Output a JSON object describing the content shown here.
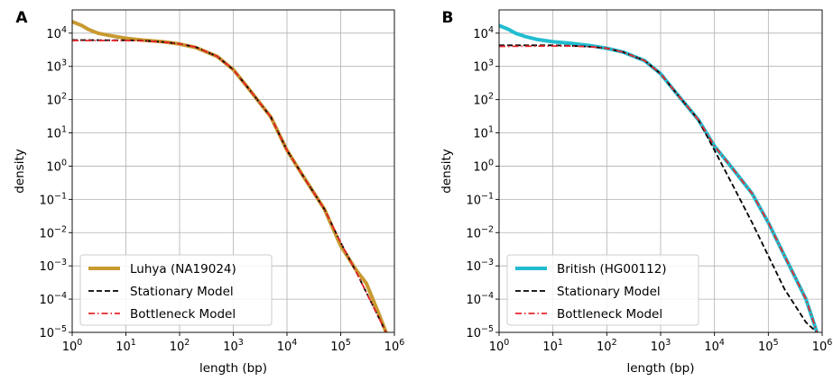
{
  "chart_data": [
    {
      "type": "line",
      "panel_label": "A",
      "xlabel": "length (bp)",
      "ylabel": "density",
      "xscale": "log",
      "yscale": "log",
      "xlim": [
        1,
        1000000
      ],
      "ylim": [
        1e-05,
        50000
      ],
      "grid": true,
      "legend_position": "lower-left",
      "x_ticks": [
        {
          "value": 1,
          "base": "10",
          "exp": "0"
        },
        {
          "value": 10,
          "base": "10",
          "exp": "1"
        },
        {
          "value": 100,
          "base": "10",
          "exp": "2"
        },
        {
          "value": 1000,
          "base": "10",
          "exp": "3"
        },
        {
          "value": 10000,
          "base": "10",
          "exp": "4"
        },
        {
          "value": 100000,
          "base": "10",
          "exp": "5"
        },
        {
          "value": 1000000,
          "base": "10",
          "exp": "6"
        }
      ],
      "y_ticks": [
        {
          "value": 10000,
          "base": "10",
          "exp": "4"
        },
        {
          "value": 1000,
          "base": "10",
          "exp": "3"
        },
        {
          "value": 100,
          "base": "10",
          "exp": "2"
        },
        {
          "value": 10,
          "base": "10",
          "exp": "1"
        },
        {
          "value": 1,
          "base": "10",
          "exp": "0"
        },
        {
          "value": 0.1,
          "base": "10",
          "exp": "−1"
        },
        {
          "value": 0.01,
          "base": "10",
          "exp": "−2"
        },
        {
          "value": 0.001,
          "base": "10",
          "exp": "−3"
        },
        {
          "value": 0.0001,
          "base": "10",
          "exp": "−4"
        },
        {
          "value": 1e-05,
          "base": "10",
          "exp": "−5"
        }
      ],
      "series": [
        {
          "name": "Luhya  (NA19024)",
          "color": "#c89a30",
          "style": "solid-thick",
          "x": [
            1,
            1.5,
            2,
            3,
            5,
            10,
            20,
            50,
            100,
            200,
            500,
            1000,
            2000,
            5000,
            10000,
            20000,
            50000,
            100000,
            200000,
            300000,
            500000,
            700000
          ],
          "y": [
            22000,
            17000,
            13000,
            10000,
            8500,
            7000,
            6200,
            5500,
            4700,
            3700,
            2000,
            800,
            200,
            30,
            3,
            0.5,
            0.05,
            0.004,
            0.0007,
            0.0003,
            4e-05,
            1e-05
          ]
        },
        {
          "name": "Stationary Model",
          "color": "#000000",
          "style": "dashed",
          "x": [
            1,
            10,
            20,
            50,
            100,
            200,
            500,
            1000,
            2000,
            5000,
            10000,
            20000,
            50000,
            100000,
            200000,
            500000,
            700000
          ],
          "y": [
            6200,
            6100,
            6000,
            5400,
            4800,
            3800,
            2000,
            800,
            200,
            30,
            3,
            0.5,
            0.05,
            0.005,
            0.0006,
            3e-05,
            1e-05
          ]
        },
        {
          "name": "Bottleneck Model",
          "color": "#e8262a",
          "style": "dashdot",
          "x": [
            1,
            10,
            20,
            50,
            100,
            200,
            500,
            1000,
            2000,
            5000,
            10000,
            20000,
            50000,
            100000,
            200000,
            500000,
            700000
          ],
          "y": [
            6000,
            6000,
            5900,
            5400,
            4800,
            3800,
            2000,
            800,
            200,
            30,
            3,
            0.5,
            0.05,
            0.005,
            0.0006,
            3e-05,
            1e-05
          ]
        }
      ]
    },
    {
      "type": "line",
      "panel_label": "B",
      "xlabel": "length (bp)",
      "ylabel": "density",
      "xscale": "log",
      "yscale": "log",
      "xlim": [
        1,
        1000000
      ],
      "ylim": [
        1e-05,
        50000
      ],
      "grid": true,
      "legend_position": "lower-left",
      "x_ticks": [
        {
          "value": 1,
          "base": "10",
          "exp": "0"
        },
        {
          "value": 10,
          "base": "10",
          "exp": "1"
        },
        {
          "value": 100,
          "base": "10",
          "exp": "2"
        },
        {
          "value": 1000,
          "base": "10",
          "exp": "3"
        },
        {
          "value": 10000,
          "base": "10",
          "exp": "4"
        },
        {
          "value": 100000,
          "base": "10",
          "exp": "5"
        },
        {
          "value": 1000000,
          "base": "10",
          "exp": "6"
        }
      ],
      "y_ticks": [
        {
          "value": 10000,
          "base": "10",
          "exp": "4"
        },
        {
          "value": 1000,
          "base": "10",
          "exp": "3"
        },
        {
          "value": 100,
          "base": "10",
          "exp": "2"
        },
        {
          "value": 10,
          "base": "10",
          "exp": "1"
        },
        {
          "value": 1,
          "base": "10",
          "exp": "0"
        },
        {
          "value": 0.1,
          "base": "10",
          "exp": "−1"
        },
        {
          "value": 0.01,
          "base": "10",
          "exp": "−2"
        },
        {
          "value": 0.001,
          "base": "10",
          "exp": "−3"
        },
        {
          "value": 0.0001,
          "base": "10",
          "exp": "−4"
        },
        {
          "value": 1e-05,
          "base": "10",
          "exp": "−5"
        }
      ],
      "series": [
        {
          "name": "British  (HG00112)",
          "color": "#22bcd0",
          "style": "solid-thick",
          "x": [
            1,
            1.5,
            2,
            3,
            5,
            10,
            20,
            50,
            100,
            200,
            500,
            1000,
            2000,
            5000,
            10000,
            20000,
            50000,
            100000,
            200000,
            500000,
            800000
          ],
          "y": [
            17000,
            13000,
            10000,
            8000,
            6500,
            5500,
            5000,
            4200,
            3500,
            2700,
            1500,
            600,
            150,
            25,
            4,
            1,
            0.15,
            0.02,
            0.002,
            0.0001,
            1e-05
          ]
        },
        {
          "name": "Stationary Model",
          "color": "#000000",
          "style": "dashed",
          "x": [
            1,
            10,
            20,
            50,
            100,
            200,
            500,
            1000,
            2000,
            5000,
            10000,
            20000,
            50000,
            100000,
            200000,
            500000,
            800000
          ],
          "y": [
            4300,
            4300,
            4200,
            3900,
            3500,
            2700,
            1500,
            600,
            150,
            25,
            3,
            0.35,
            0.02,
            0.002,
            0.0002,
            2e-05,
            1e-05
          ]
        },
        {
          "name": "Bottleneck Model",
          "color": "#e8262a",
          "style": "dashdot",
          "x": [
            1,
            10,
            20,
            50,
            100,
            200,
            500,
            1000,
            2000,
            5000,
            10000,
            20000,
            50000,
            100000,
            200000,
            500000,
            800000
          ],
          "y": [
            4000,
            4100,
            4100,
            3900,
            3500,
            2700,
            1500,
            600,
            150,
            25,
            4,
            1,
            0.15,
            0.02,
            0.002,
            0.0001,
            1e-05
          ]
        }
      ]
    }
  ]
}
